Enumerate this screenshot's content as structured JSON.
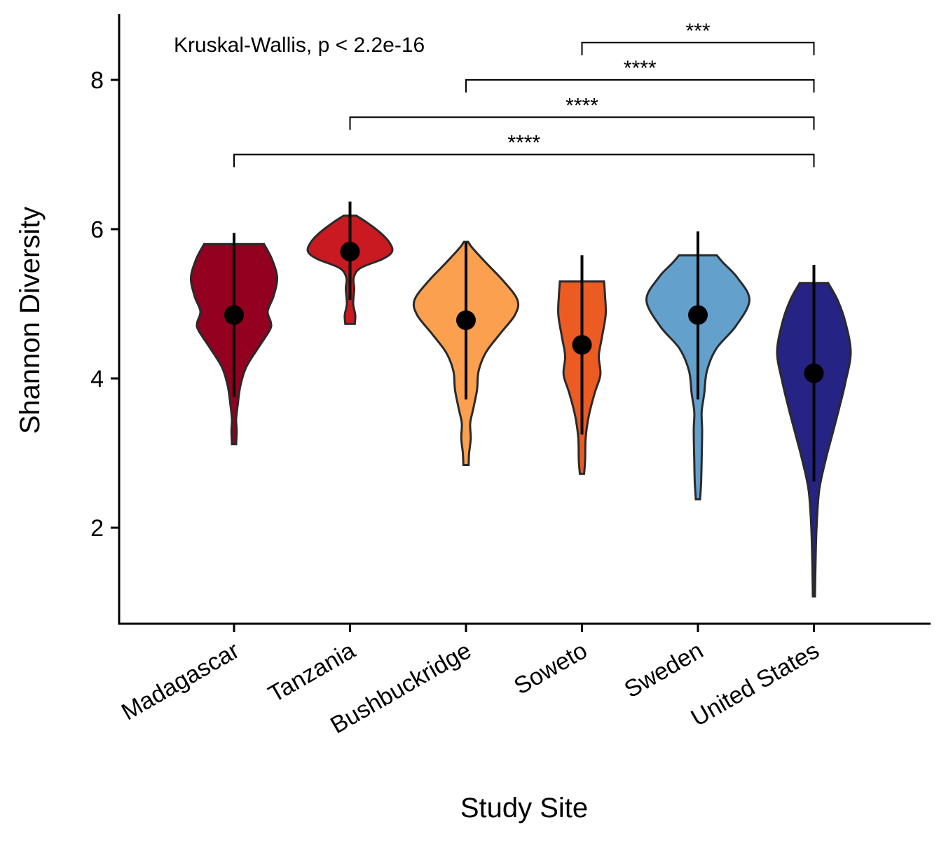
{
  "chart_data": {
    "type": "violin",
    "xlabel": "Study Site",
    "ylabel": "Shannon Diversity",
    "ylim": [
      0.85,
      8.9
    ],
    "y_ticks": [
      2,
      4,
      6,
      8
    ],
    "grid": false,
    "legend": "none",
    "annotation": "Kruskal-Wallis, p < 2.2e-16",
    "categories": [
      "Madagascar",
      "Tanzania",
      "Bushbuckridge",
      "Soweto",
      "Sweden",
      "United States"
    ],
    "series": [
      {
        "category": "Madagascar",
        "color": "#930020",
        "point": 4.85,
        "range": [
          3.75,
          5.95
        ],
        "density": [
          [
            3.12,
            0.04
          ],
          [
            3.3,
            0.05
          ],
          [
            3.45,
            0.04
          ],
          [
            3.65,
            0.07
          ],
          [
            3.9,
            0.12
          ],
          [
            4.15,
            0.23
          ],
          [
            4.4,
            0.45
          ],
          [
            4.65,
            0.68
          ],
          [
            4.75,
            0.7
          ],
          [
            4.9,
            0.64
          ],
          [
            5.1,
            0.75
          ],
          [
            5.35,
            0.82
          ],
          [
            5.6,
            0.72
          ],
          [
            5.8,
            0.57
          ]
        ]
      },
      {
        "category": "Tanzania",
        "color": "#c81a20",
        "point": 5.7,
        "range": [
          5.05,
          6.37
        ],
        "density": [
          [
            4.73,
            0.09
          ],
          [
            4.85,
            0.1
          ],
          [
            5.0,
            0.06
          ],
          [
            5.2,
            0.08
          ],
          [
            5.35,
            0.07
          ],
          [
            5.48,
            0.2
          ],
          [
            5.6,
            0.62
          ],
          [
            5.7,
            0.8
          ],
          [
            5.82,
            0.75
          ],
          [
            5.95,
            0.58
          ],
          [
            6.1,
            0.3
          ],
          [
            6.18,
            0.12
          ]
        ]
      },
      {
        "category": "Bushbuckridge",
        "color": "#fba04f",
        "point": 4.78,
        "range": [
          3.72,
          5.82
        ],
        "density": [
          [
            2.84,
            0.05
          ],
          [
            3.0,
            0.06
          ],
          [
            3.2,
            0.09
          ],
          [
            3.4,
            0.08
          ],
          [
            3.6,
            0.14
          ],
          [
            3.85,
            0.21
          ],
          [
            4.1,
            0.24
          ],
          [
            4.35,
            0.38
          ],
          [
            4.6,
            0.65
          ],
          [
            4.85,
            0.93
          ],
          [
            5.05,
            0.98
          ],
          [
            5.3,
            0.72
          ],
          [
            5.55,
            0.38
          ],
          [
            5.75,
            0.12
          ],
          [
            5.83,
            0.04
          ]
        ]
      },
      {
        "category": "Soweto",
        "color": "#eb5b22",
        "point": 4.45,
        "range": [
          3.25,
          5.65
        ],
        "density": [
          [
            2.72,
            0.04
          ],
          [
            2.9,
            0.06
          ],
          [
            3.2,
            0.07
          ],
          [
            3.5,
            0.13
          ],
          [
            3.8,
            0.24
          ],
          [
            4.05,
            0.35
          ],
          [
            4.3,
            0.32
          ],
          [
            4.55,
            0.38
          ],
          [
            4.85,
            0.45
          ],
          [
            5.1,
            0.44
          ],
          [
            5.3,
            0.42
          ]
        ]
      },
      {
        "category": "Sweden",
        "color": "#63a0cc",
        "point": 4.85,
        "range": [
          3.72,
          5.97
        ],
        "density": [
          [
            2.38,
            0.04
          ],
          [
            2.6,
            0.06
          ],
          [
            2.9,
            0.07
          ],
          [
            3.3,
            0.08
          ],
          [
            3.55,
            0.07
          ],
          [
            3.8,
            0.12
          ],
          [
            4.1,
            0.17
          ],
          [
            4.4,
            0.35
          ],
          [
            4.7,
            0.72
          ],
          [
            5.05,
            0.98
          ],
          [
            5.35,
            0.75
          ],
          [
            5.55,
            0.48
          ],
          [
            5.65,
            0.36
          ]
        ]
      },
      {
        "category": "United States",
        "color": "#252383",
        "point": 4.07,
        "range": [
          2.62,
          5.52
        ],
        "density": [
          [
            1.08,
            0.02
          ],
          [
            1.5,
            0.03
          ],
          [
            2.0,
            0.05
          ],
          [
            2.5,
            0.1
          ],
          [
            2.9,
            0.22
          ],
          [
            3.25,
            0.35
          ],
          [
            3.6,
            0.48
          ],
          [
            3.95,
            0.6
          ],
          [
            4.35,
            0.7
          ],
          [
            4.75,
            0.6
          ],
          [
            5.05,
            0.45
          ],
          [
            5.28,
            0.27
          ]
        ]
      }
    ],
    "comparisons": [
      {
        "from": "Soweto",
        "to": "United States",
        "y": 8.5,
        "label": "***"
      },
      {
        "from": "Bushbuckridge",
        "to": "United States",
        "y": 8.0,
        "label": "****"
      },
      {
        "from": "Tanzania",
        "to": "United States",
        "y": 7.5,
        "label": "****"
      },
      {
        "from": "Madagascar",
        "to": "United States",
        "y": 7.0,
        "label": "****"
      }
    ]
  }
}
